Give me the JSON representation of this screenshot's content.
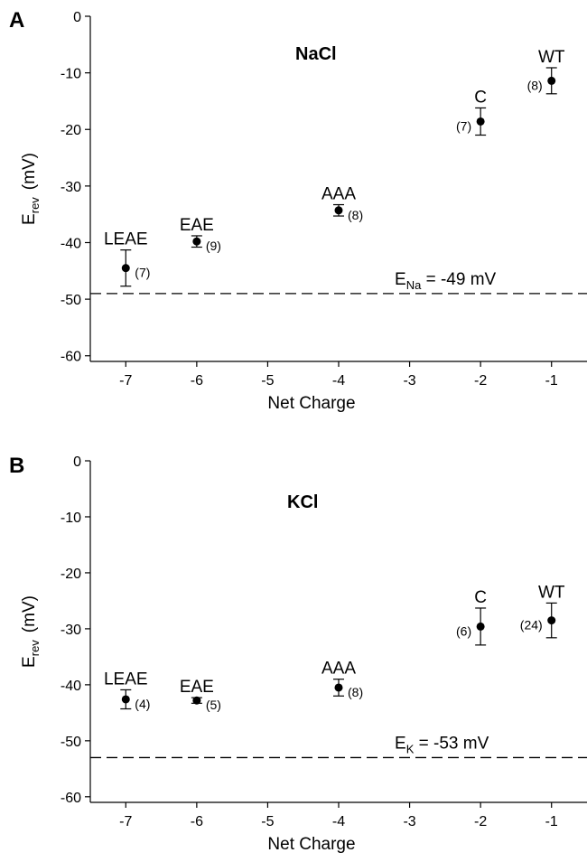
{
  "chart_data": [
    {
      "type": "scatter",
      "panel": "A",
      "title": "NaCl",
      "xlabel": "Net Charge",
      "ylabel": "E",
      "ylabel_sub": "rev",
      "ylabel_unit": "(mV)",
      "xlim": [
        -7.5,
        -0.5
      ],
      "ylim": [
        -61,
        0
      ],
      "xticks": [
        -7,
        -6,
        -5,
        -4,
        -3,
        -2,
        -1
      ],
      "yticks": [
        0,
        -10,
        -20,
        -30,
        -40,
        -50,
        -60
      ],
      "grid": false,
      "points": [
        {
          "x": -7,
          "y": -44.5,
          "err": 3.2,
          "label": "LEAE",
          "n": "(7)",
          "n_side": "right"
        },
        {
          "x": -6,
          "y": -39.8,
          "err": 1.0,
          "label": "EAE",
          "n": "(9)",
          "n_side": "right"
        },
        {
          "x": -4,
          "y": -34.3,
          "err": 1.0,
          "label": "AAA",
          "n": "(8)",
          "n_side": "right"
        },
        {
          "x": -2,
          "y": -18.6,
          "err": 2.4,
          "label": "C",
          "n": "(7)",
          "n_side": "left"
        },
        {
          "x": -1,
          "y": -11.4,
          "err": 2.3,
          "label": "WT",
          "n": "(8)",
          "n_side": "left"
        }
      ],
      "reference": {
        "y": -49,
        "label_main": "E",
        "label_sub": "Na",
        "label_rest": " = -49 mV"
      }
    },
    {
      "type": "scatter",
      "panel": "B",
      "title": "KCl",
      "xlabel": "Net Charge",
      "ylabel": "E",
      "ylabel_sub": "rev",
      "ylabel_unit": "(mV)",
      "xlim": [
        -7.5,
        -0.5
      ],
      "ylim": [
        -61,
        0
      ],
      "xticks": [
        -7,
        -6,
        -5,
        -4,
        -3,
        -2,
        -1
      ],
      "yticks": [
        0,
        -10,
        -20,
        -30,
        -40,
        -50,
        -60
      ],
      "grid": false,
      "points": [
        {
          "x": -7,
          "y": -42.6,
          "err": 1.7,
          "label": "LEAE",
          "n": "(4)",
          "n_side": "right"
        },
        {
          "x": -6,
          "y": -42.8,
          "err": 0.5,
          "label": "EAE",
          "n": "(5)",
          "n_side": "right"
        },
        {
          "x": -4,
          "y": -40.5,
          "err": 1.5,
          "label": "AAA",
          "n": "(8)",
          "n_side": "right"
        },
        {
          "x": -2,
          "y": -29.6,
          "err": 3.3,
          "label": "C",
          "n": "(6)",
          "n_side": "left"
        },
        {
          "x": -1,
          "y": -28.5,
          "err": 3.1,
          "label": "WT",
          "n": "(24)",
          "n_side": "left"
        }
      ],
      "reference": {
        "y": -53,
        "label_main": "E",
        "label_sub": "K",
        "label_rest": " = -53 mV"
      }
    }
  ]
}
